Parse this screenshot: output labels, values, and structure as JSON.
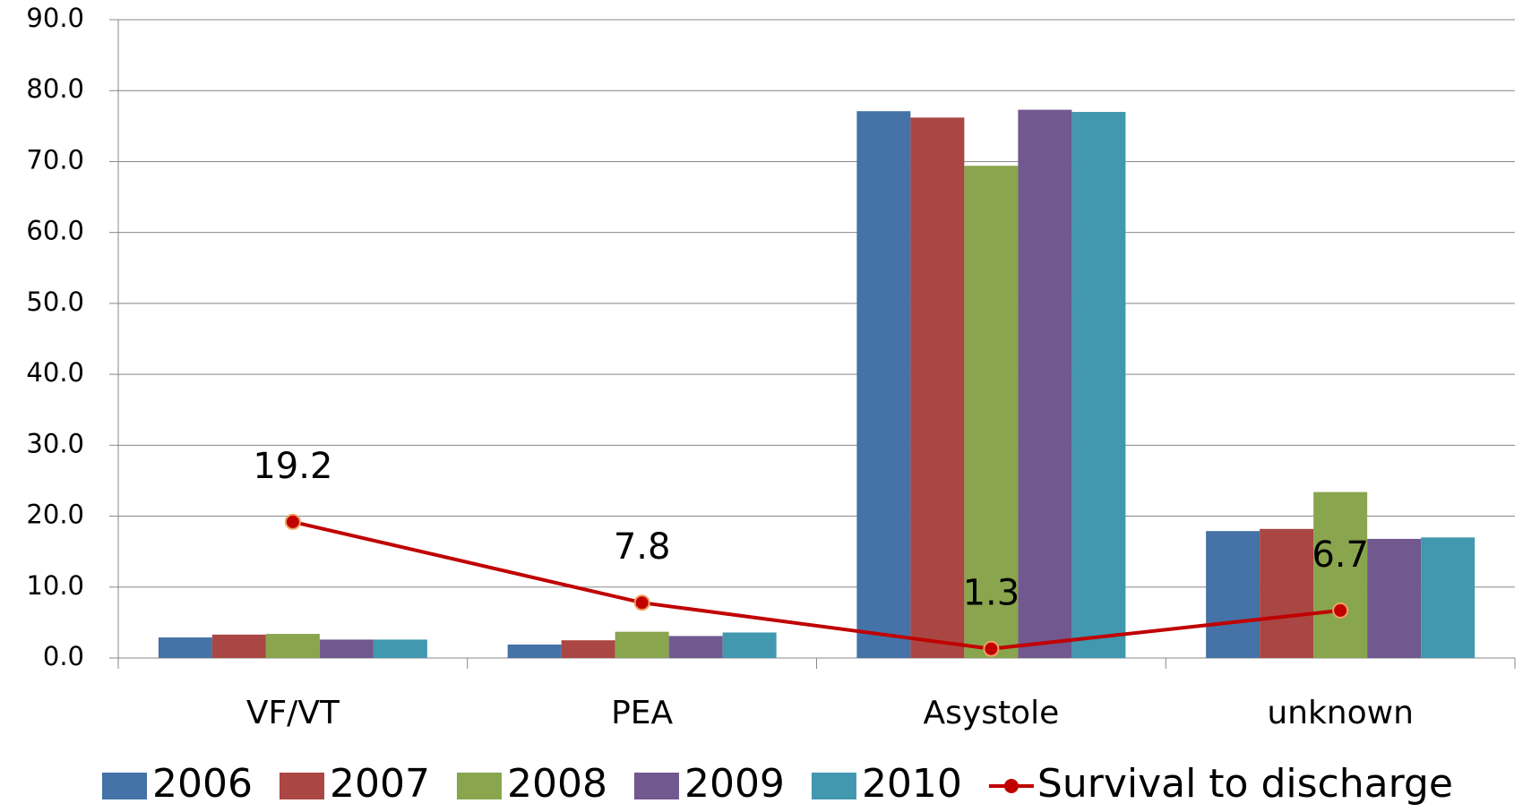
{
  "chart_data": {
    "type": "bar",
    "categories": [
      "VF/VT",
      "PEA",
      "Asystole",
      "unknown"
    ],
    "series": [
      {
        "name": "2006",
        "color": "#4572a7",
        "values": [
          2.9,
          1.9,
          77.1,
          17.9
        ]
      },
      {
        "name": "2007",
        "color": "#aa4643",
        "values": [
          3.3,
          2.5,
          76.2,
          18.2
        ]
      },
      {
        "name": "2008",
        "color": "#89a54e",
        "values": [
          3.4,
          3.7,
          69.4,
          23.4
        ]
      },
      {
        "name": "2009",
        "color": "#71588f",
        "values": [
          2.6,
          3.1,
          77.3,
          16.8
        ]
      },
      {
        "name": "2010",
        "color": "#4198af",
        "values": [
          2.6,
          3.6,
          77.0,
          17.0
        ]
      },
      {
        "name": "Survival to discharge",
        "type": "line",
        "color": "#c00000",
        "values": [
          19.2,
          7.8,
          1.3,
          6.7
        ]
      }
    ],
    "ylim": [
      0,
      90
    ],
    "yticks": [
      {
        "value": 0,
        "label": "0.0"
      },
      {
        "value": 10,
        "label": "10.0"
      },
      {
        "value": 20,
        "label": "20.0"
      },
      {
        "value": 30,
        "label": "30.0"
      },
      {
        "value": 40,
        "label": "40.0"
      },
      {
        "value": 50,
        "label": "50.0"
      },
      {
        "value": 60,
        "label": "60.0"
      },
      {
        "value": 70,
        "label": "70.0"
      },
      {
        "value": 80,
        "label": "80.0"
      },
      {
        "value": 90,
        "label": "90.0"
      }
    ],
    "grid": true,
    "legend": "bottom"
  }
}
